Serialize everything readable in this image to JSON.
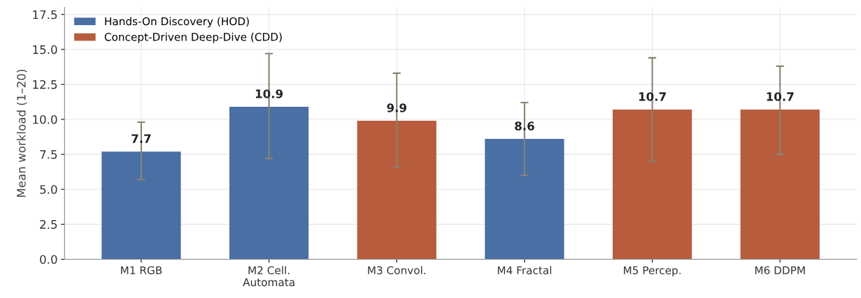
{
  "chart_data": {
    "type": "bar",
    "ylabel": "Mean workload (1–20)",
    "categories": [
      "M1 RGB",
      "M2 Cell.\nAutomata",
      "M3 Convol.",
      "M4 Fractal",
      "M5 Percep.",
      "M6 DDPM"
    ],
    "series": [
      {
        "name": "Hands-On Discovery (HOD)",
        "color": "#4a6fa5",
        "values": [
          7.7,
          10.9,
          null,
          8.6,
          null,
          null
        ],
        "errors": [
          [
            5.7,
            9.8
          ],
          [
            7.2,
            14.7
          ],
          null,
          [
            6.0,
            11.2
          ],
          null,
          null
        ]
      },
      {
        "name": "Concept-Driven Deep-Dive (CDD)",
        "color": "#b85c3e",
        "values": [
          null,
          null,
          9.9,
          null,
          10.7,
          10.7
        ],
        "errors": [
          null,
          null,
          [
            6.6,
            13.3
          ],
          null,
          [
            7.0,
            14.4
          ],
          [
            7.5,
            13.8
          ]
        ]
      }
    ],
    "stacked": true,
    "ylim": [
      0,
      18.0
    ],
    "yticks": [
      {
        "value": 0,
        "label": "0.0"
      },
      {
        "value": 2.5,
        "label": "2.5"
      },
      {
        "value": 5,
        "label": "5.0"
      },
      {
        "value": 7.5,
        "label": "7.5"
      },
      {
        "value": 10,
        "label": "10.0"
      },
      {
        "value": 12.5,
        "label": "12.5"
      },
      {
        "value": 15,
        "label": "15.0"
      },
      {
        "value": 17.5,
        "label": "17.5"
      }
    ],
    "grid": true,
    "legend": "top left",
    "data_labels": true
  }
}
